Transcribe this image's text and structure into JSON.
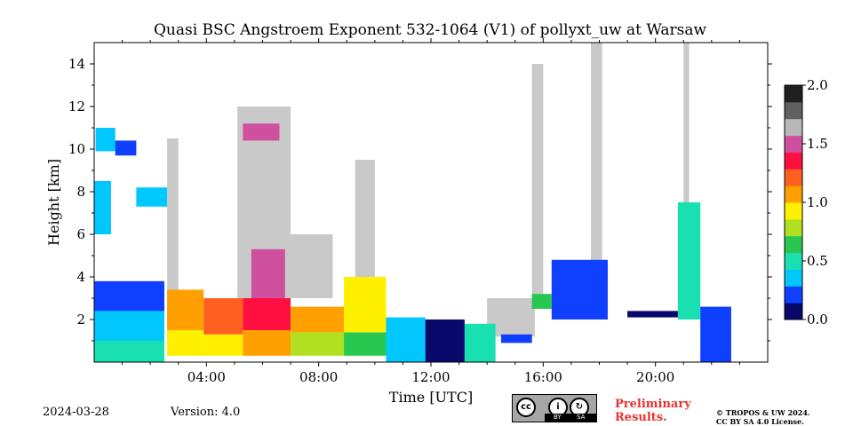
{
  "chart_data": {
    "type": "heatmap",
    "title": "Quasi BSC Angstroem Exponent 532-1064 (V1) of pollyxt_uw at Warsaw",
    "xlabel": "Time [UTC]",
    "ylabel": "Height [km]",
    "x_range_hours": [
      0,
      24
    ],
    "y_range_km": [
      0,
      15
    ],
    "x_ticks": [
      "04:00",
      "08:00",
      "12:00",
      "16:00",
      "20:00"
    ],
    "x_tick_hours": [
      4,
      8,
      12,
      16,
      20
    ],
    "y_ticks": [
      "2",
      "4",
      "6",
      "8",
      "10",
      "12",
      "14"
    ],
    "y_tick_values": [
      2,
      4,
      6,
      8,
      10,
      12,
      14
    ],
    "colorbar": {
      "min": 0.0,
      "max": 2.0,
      "ticks": [
        "0.0",
        "0.5",
        "1.0",
        "1.5",
        "2.0"
      ],
      "tick_values": [
        0.0,
        0.5,
        1.0,
        1.5,
        2.0
      ],
      "colormap": [
        "#08086b",
        "#1040ff",
        "#00c8ff",
        "#18e0b0",
        "#28c850",
        "#b0e020",
        "#fff000",
        "#ffa000",
        "#ff6020",
        "#ff1040",
        "#d050a0",
        "#b8b8b8",
        "#606060",
        "#202020"
      ]
    },
    "colors": {
      "undetermined": "#c0c0c0",
      "background": "#ffffff"
    },
    "grid": false,
    "regions": [
      {
        "t": [
          0.0,
          2.5
        ],
        "h": [
          0.0,
          1.0
        ],
        "value": 0.55
      },
      {
        "t": [
          0.0,
          2.5
        ],
        "h": [
          1.0,
          2.4
        ],
        "value": 0.3
      },
      {
        "t": [
          0.0,
          2.5
        ],
        "h": [
          2.4,
          3.8
        ],
        "value": 0.15
      },
      {
        "t": [
          0.05,
          0.75
        ],
        "h": [
          9.9,
          11.0
        ],
        "value": 0.35
      },
      {
        "t": [
          0.75,
          1.5
        ],
        "h": [
          9.7,
          10.4
        ],
        "value": 0.25
      },
      {
        "t": [
          0.0,
          0.6
        ],
        "h": [
          6.0,
          8.5
        ],
        "value": 0.3
      },
      {
        "t": [
          1.5,
          2.6
        ],
        "h": [
          7.3,
          8.2
        ],
        "value": 0.4
      },
      {
        "t": [
          2.6,
          3.9
        ],
        "h": [
          0.3,
          1.5
        ],
        "value": 0.9
      },
      {
        "t": [
          2.6,
          3.9
        ],
        "h": [
          1.5,
          3.4
        ],
        "value": 1.05
      },
      {
        "t": [
          3.9,
          5.3
        ],
        "h": [
          0.3,
          1.3
        ],
        "value": 0.9
      },
      {
        "t": [
          3.9,
          5.3
        ],
        "h": [
          1.3,
          3.0
        ],
        "value": 1.15
      },
      {
        "t": [
          5.3,
          7.0
        ],
        "h": [
          0.3,
          1.5
        ],
        "value": 1.1
      },
      {
        "t": [
          5.3,
          7.0
        ],
        "h": [
          1.5,
          3.0
        ],
        "value": 1.3
      },
      {
        "t": [
          5.6,
          6.8
        ],
        "h": [
          3.0,
          5.3
        ],
        "value": 1.5
      },
      {
        "t": [
          5.3,
          6.6
        ],
        "h": [
          10.4,
          11.2
        ],
        "value": 1.45
      },
      {
        "t": [
          7.0,
          8.9
        ],
        "h": [
          0.3,
          1.4
        ],
        "value": 0.85
      },
      {
        "t": [
          7.0,
          8.9
        ],
        "h": [
          1.4,
          2.6
        ],
        "value": 1.05
      },
      {
        "t": [
          8.9,
          10.4
        ],
        "h": [
          0.3,
          1.4
        ],
        "value": 0.7
      },
      {
        "t": [
          8.9,
          10.4
        ],
        "h": [
          1.4,
          4.0
        ],
        "value": 0.95
      },
      {
        "t": [
          10.4,
          11.8
        ],
        "h": [
          0.0,
          2.1
        ],
        "value": 0.35
      },
      {
        "t": [
          11.8,
          13.2
        ],
        "h": [
          0.0,
          2.0
        ],
        "value": 0.1
      },
      {
        "t": [
          13.2,
          14.3
        ],
        "h": [
          0.0,
          1.8
        ],
        "value": 0.5
      },
      {
        "t": [
          14.5,
          15.6
        ],
        "h": [
          0.9,
          1.3
        ],
        "value": 0.15
      },
      {
        "t": [
          15.6,
          16.3
        ],
        "h": [
          2.5,
          3.2
        ],
        "value": 0.6
      },
      {
        "t": [
          16.3,
          18.3
        ],
        "h": [
          2.0,
          4.8
        ],
        "value": 0.2
      },
      {
        "t": [
          19.0,
          20.8
        ],
        "h": [
          2.1,
          2.4
        ],
        "value": 0.1
      },
      {
        "t": [
          20.8,
          21.6
        ],
        "h": [
          2.0,
          7.5
        ],
        "value": 0.5
      },
      {
        "t": [
          21.6,
          22.7
        ],
        "h": [
          0.0,
          2.6
        ],
        "value": 0.15
      }
    ]
  },
  "footer": {
    "date": "2024-03-28",
    "version": "Version: 4.0",
    "preliminary_line1": "Preliminary",
    "preliminary_line2": "Results.",
    "copyright_line1": "© TROPOS & UW 2024.",
    "copyright_line2": "CC BY SA 4.0 License.",
    "license_badge": {
      "by": "BY",
      "sa": "SA"
    }
  }
}
